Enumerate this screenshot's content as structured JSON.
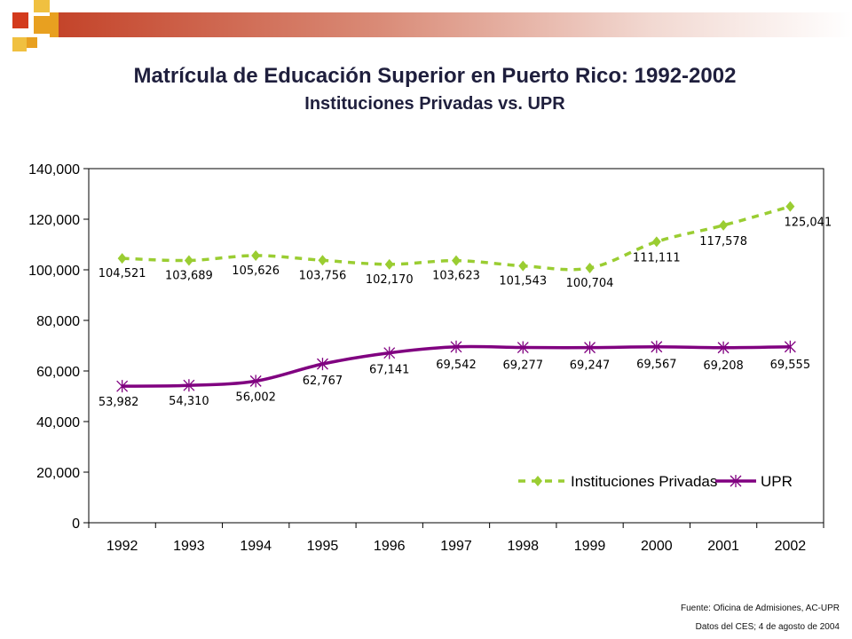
{
  "title": "Matrícula de Educación Superior en Puerto Rico: 1992-2002",
  "subtitle": "Instituciones Privadas vs. UPR",
  "colors": {
    "privadas": "#9acd32",
    "upr": "#800080",
    "deco_red": "#d33a1c",
    "deco_orange": "#e8a020"
  },
  "chart_data": {
    "type": "line",
    "x": [
      "1992",
      "1993",
      "1994",
      "1995",
      "1996",
      "1997",
      "1998",
      "1999",
      "2000",
      "2001",
      "2002"
    ],
    "ylim": [
      0,
      140000
    ],
    "yticks": [
      "0",
      "20,000",
      "40,000",
      "60,000",
      "80,000",
      "100,000",
      "120,000",
      "140,000"
    ],
    "grid": false,
    "legend": "bottom-right",
    "series": [
      {
        "name": "Instituciones Privadas",
        "values": [
          104521,
          103689,
          105626,
          103756,
          102170,
          103623,
          101543,
          100704,
          111111,
          117578,
          125041
        ],
        "labels": [
          "104,521",
          "103,689",
          "105,626",
          "103,756",
          "102,170",
          "103,623",
          "101,543",
          "100,704",
          "111,111",
          "117,578",
          "125,041"
        ],
        "color": "#9acd32",
        "style": "dashed",
        "marker": "diamond"
      },
      {
        "name": "UPR",
        "values": [
          53982,
          54310,
          56002,
          62767,
          67141,
          69542,
          69277,
          69247,
          69567,
          69208,
          69555
        ],
        "labels": [
          "53,982",
          "54,310",
          "56,002",
          "62,767",
          "67,141",
          "69,542",
          "69,277",
          "69,247",
          "69,567",
          "69,208",
          "69,555"
        ],
        "color": "#800080",
        "style": "solid",
        "marker": "asterisk"
      }
    ]
  },
  "source": {
    "line1": "Fuente: Oficina de Admisiones, AC-UPR",
    "line2": "Datos del CES; 4 de agosto de 2004"
  }
}
